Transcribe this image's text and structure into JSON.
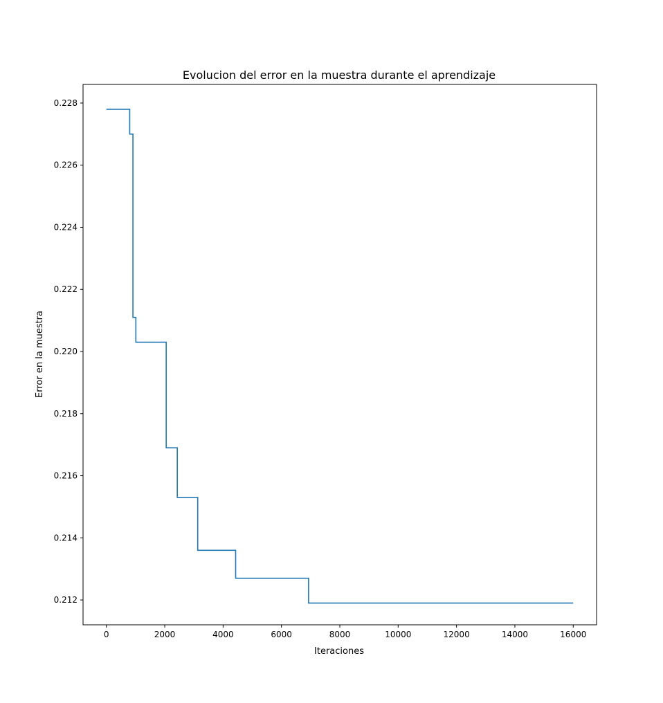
{
  "chart_data": {
    "type": "line",
    "step": true,
    "title": "Evolucion del error en la muestra durante el aprendizaje",
    "xlabel": "Iteraciones",
    "ylabel": "Error en la muestra",
    "xlim": [
      -800,
      16800
    ],
    "ylim": [
      0.2112,
      0.2286
    ],
    "xticks": [
      0,
      2000,
      4000,
      6000,
      8000,
      10000,
      12000,
      14000,
      16000
    ],
    "xtick_labels": [
      "0",
      "2000",
      "4000",
      "6000",
      "8000",
      "10000",
      "12000",
      "14000",
      "16000"
    ],
    "yticks": [
      0.212,
      0.214,
      0.216,
      0.218,
      0.22,
      0.222,
      0.224,
      0.226,
      0.228
    ],
    "ytick_labels": [
      "0.212",
      "0.214",
      "0.216",
      "0.218",
      "0.220",
      "0.222",
      "0.224",
      "0.226",
      "0.228"
    ],
    "grid": false,
    "line_color": "#1f77b4",
    "series": [
      {
        "x": [
          0,
          800,
          800,
          910,
          910,
          1010,
          1010,
          2050,
          2050,
          2430,
          2430,
          3130,
          3130,
          4430,
          4430,
          6930,
          6930,
          16000
        ],
        "y": [
          0.2278,
          0.2278,
          0.227,
          0.227,
          0.2211,
          0.2211,
          0.2203,
          0.2203,
          0.2169,
          0.2169,
          0.2153,
          0.2153,
          0.2136,
          0.2136,
          0.2127,
          0.2127,
          0.2119,
          0.2119
        ]
      }
    ]
  }
}
